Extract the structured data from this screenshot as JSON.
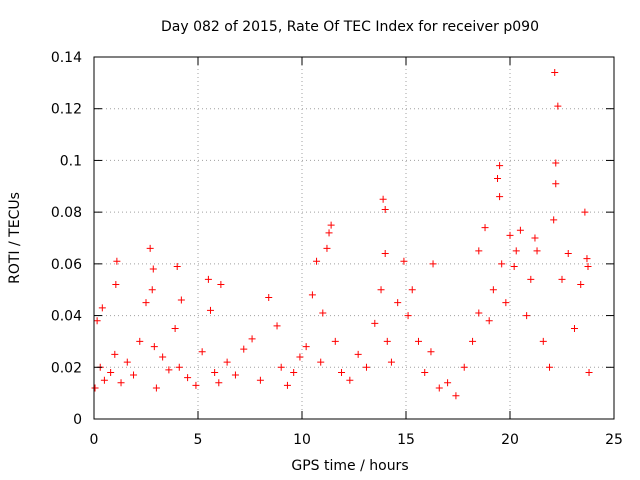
{
  "chart_data": {
    "type": "scatter",
    "title": "Day 082 of 2015, Rate Of TEC Index for receiver p090",
    "xlabel": "GPS time / hours",
    "ylabel": "ROTI / TECUs",
    "xlim": [
      0,
      25
    ],
    "ylim": [
      0,
      0.14
    ],
    "xticks": [
      0,
      5,
      10,
      15,
      20,
      25
    ],
    "xtick_labels": [
      "0",
      "5",
      "10",
      "15",
      "20",
      "25"
    ],
    "yticks": [
      0,
      0.02,
      0.04,
      0.06,
      0.08,
      0.1,
      0.12,
      0.14
    ],
    "ytick_labels": [
      "0",
      "0.02",
      "0.04",
      "0.06",
      "0.08",
      "0.1",
      "0.12",
      "0.14"
    ],
    "grid": true,
    "marker": "plus",
    "color": "#ff0000",
    "series": [
      {
        "name": "ROTI",
        "x": [
          0.05,
          0.15,
          0.3,
          0.5,
          0.8,
          1.0,
          1.1,
          1.3,
          1.6,
          1.9,
          2.2,
          2.5,
          2.7,
          2.8,
          2.9,
          3.0,
          3.3,
          3.6,
          3.9,
          4.0,
          4.1,
          4.5,
          4.9,
          5.2,
          5.5,
          5.6,
          5.8,
          6.0,
          6.4,
          6.8,
          7.2,
          7.6,
          8.0,
          8.4,
          8.8,
          9.0,
          9.3,
          9.6,
          9.9,
          10.2,
          10.5,
          10.7,
          10.9,
          11.0,
          11.2,
          11.4,
          11.6,
          11.9,
          12.3,
          12.7,
          13.1,
          13.5,
          13.8,
          13.9,
          14.0,
          14.1,
          14.3,
          14.6,
          14.9,
          15.1,
          15.3,
          15.6,
          15.9,
          16.2,
          16.6,
          17.0,
          17.4,
          17.8,
          18.2,
          18.5,
          18.8,
          19.0,
          19.2,
          19.4,
          19.5,
          19.6,
          19.8,
          20.0,
          20.2,
          20.5,
          20.8,
          21.0,
          21.3,
          21.6,
          21.9,
          22.1,
          22.2,
          22.3,
          22.5,
          22.8,
          23.1,
          23.4,
          23.6,
          23.7,
          23.8,
          0.4,
          2.85,
          11.3,
          14.0,
          19.5,
          20.3,
          22.15,
          22.2,
          23.75,
          4.2,
          6.1,
          16.3,
          18.5,
          21.2,
          1.05
        ],
        "y": [
          0.012,
          0.038,
          0.02,
          0.015,
          0.018,
          0.025,
          0.061,
          0.014,
          0.022,
          0.017,
          0.03,
          0.045,
          0.066,
          0.05,
          0.028,
          0.012,
          0.024,
          0.019,
          0.035,
          0.059,
          0.02,
          0.016,
          0.013,
          0.026,
          0.054,
          0.042,
          0.018,
          0.014,
          0.022,
          0.017,
          0.027,
          0.031,
          0.015,
          0.047,
          0.036,
          0.02,
          0.013,
          0.018,
          0.024,
          0.028,
          0.048,
          0.061,
          0.022,
          0.041,
          0.066,
          0.075,
          0.03,
          0.018,
          0.015,
          0.025,
          0.02,
          0.037,
          0.05,
          0.085,
          0.064,
          0.03,
          0.022,
          0.045,
          0.061,
          0.04,
          0.05,
          0.03,
          0.018,
          0.026,
          0.012,
          0.014,
          0.009,
          0.02,
          0.03,
          0.041,
          0.074,
          0.038,
          0.05,
          0.093,
          0.098,
          0.06,
          0.045,
          0.071,
          0.059,
          0.073,
          0.04,
          0.054,
          0.065,
          0.03,
          0.02,
          0.077,
          0.099,
          0.121,
          0.054,
          0.064,
          0.035,
          0.052,
          0.08,
          0.062,
          0.018,
          0.043,
          0.058,
          0.072,
          0.081,
          0.086,
          0.065,
          0.134,
          0.091,
          0.059,
          0.046,
          0.052,
          0.06,
          0.065,
          0.07,
          0.052
        ]
      }
    ]
  }
}
